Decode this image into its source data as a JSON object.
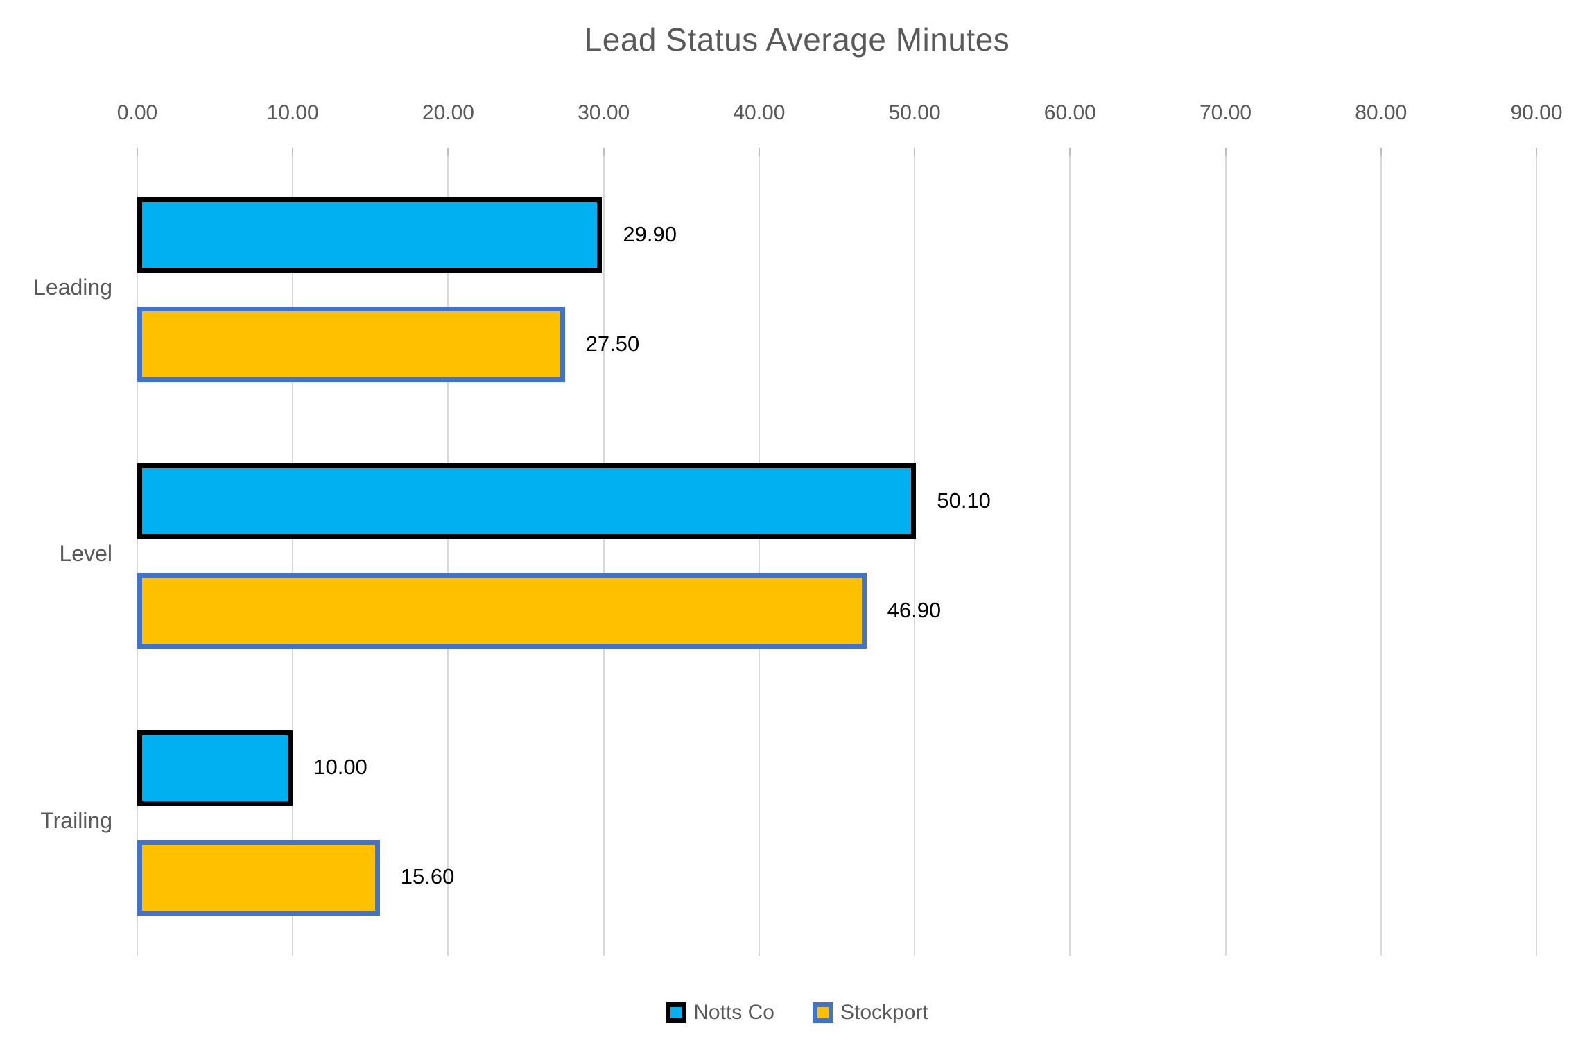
{
  "chart_data": {
    "type": "bar",
    "orientation": "horizontal",
    "title": "Lead Status Average Minutes",
    "categories": [
      "Leading",
      "Level",
      "Trailing"
    ],
    "series": [
      {
        "name": "Notts Co",
        "values": [
          29.9,
          50.1,
          10.0
        ],
        "data_labels": [
          "29.90",
          "50.10",
          "10.00"
        ],
        "fill_color": "#00B0F0",
        "border_color": "#000000"
      },
      {
        "name": "Stockport",
        "values": [
          27.5,
          46.9,
          15.6
        ],
        "data_labels": [
          "27.50",
          "46.90",
          "15.60"
        ],
        "fill_color": "#FFC000",
        "border_color": "#4472C4"
      }
    ],
    "x_axis": {
      "min": 0,
      "max": 90,
      "tick_interval": 10,
      "tick_labels": [
        "0.00",
        "10.00",
        "20.00",
        "30.00",
        "40.00",
        "50.00",
        "60.00",
        "70.00",
        "80.00",
        "90.00"
      ]
    },
    "legend": {
      "position": "bottom"
    },
    "grid": true,
    "style": {
      "title_color": "#595959",
      "axis_text_color": "#595959",
      "category_text_color": "#595959",
      "data_label_color": "#000000",
      "legend_text_color": "#595959",
      "gridline_color": "#D9D9D9",
      "background_color": "#FFFFFF"
    }
  }
}
